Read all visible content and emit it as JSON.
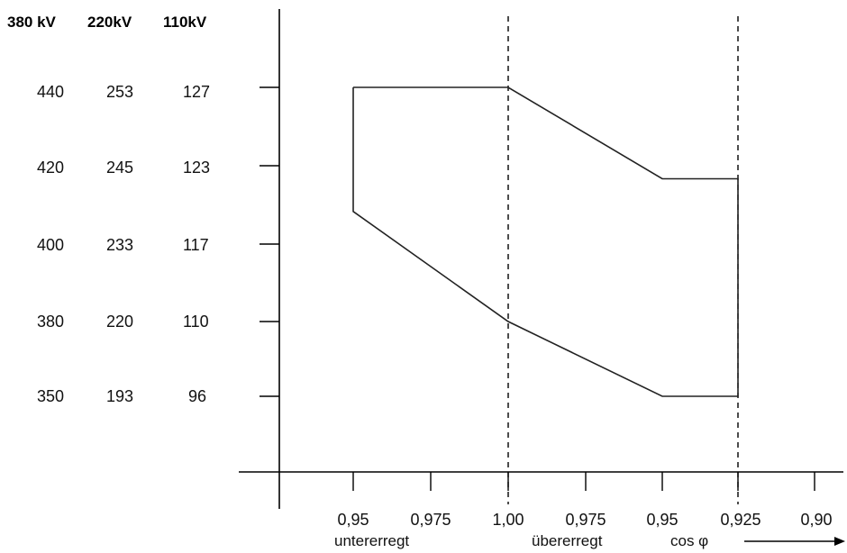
{
  "chart_data": {
    "type": "line",
    "voltage_columns": [
      {
        "header": "380 kV",
        "values": [
          "440",
          "420",
          "400",
          "380",
          "350"
        ]
      },
      {
        "header": "220kV",
        "values": [
          "253",
          "245",
          "233",
          "220",
          "193"
        ]
      },
      {
        "header": "110kV",
        "values": [
          "127",
          "123",
          "117",
          "110",
          "96"
        ]
      }
    ],
    "y_ticks": [
      "127",
      "123",
      "117",
      "110",
      "96"
    ],
    "x_ticks": [
      "0,95",
      "0,975",
      "1,00",
      "0,975",
      "0,95",
      "0,925",
      "0,90"
    ],
    "x_region_labels": [
      "untererregt",
      "übererregt"
    ],
    "x_axis_label": "cos φ",
    "dashed_reference_lines_at": [
      "1,00",
      "0,925"
    ],
    "series": [
      {
        "points": [
          {
            "x": "0,95",
            "side": "untererregt",
            "y": 127
          },
          {
            "x": "1,00",
            "side": "",
            "y": 127
          },
          {
            "x": "0,95",
            "side": "übererregt",
            "y": 122
          },
          {
            "x": "0,925",
            "side": "übererregt",
            "y": 122
          },
          {
            "x": "0,925",
            "side": "übererregt",
            "y": 96
          },
          {
            "x": "0,95",
            "side": "übererregt",
            "y": 96
          },
          {
            "x": "1,00",
            "side": "",
            "y": 110
          },
          {
            "x": "0,95",
            "side": "untererregt",
            "y": 119.5
          },
          {
            "x": "0,95",
            "side": "untererregt",
            "y": 127
          }
        ]
      }
    ]
  }
}
